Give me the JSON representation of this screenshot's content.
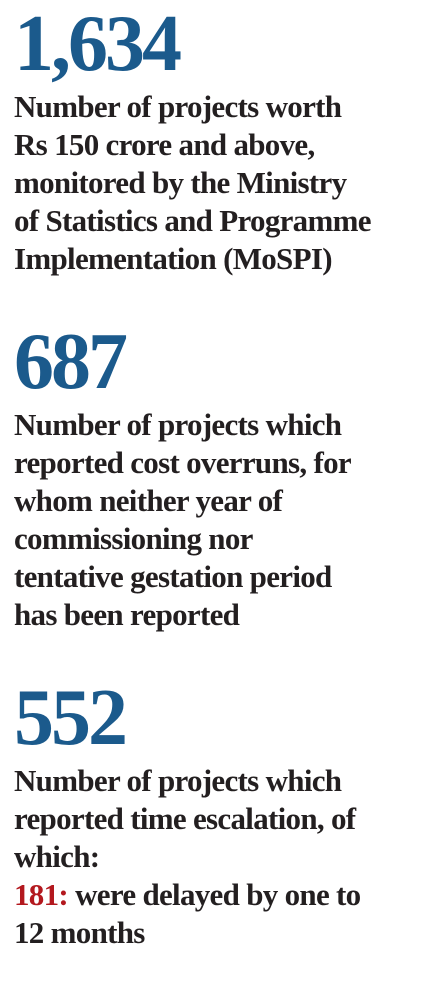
{
  "stats": [
    {
      "number": "1,634",
      "lines": [
        "Number of projects worth",
        "Rs 150 crore and above,",
        "monitored by the Ministry",
        "of Statistics and Programme",
        "Implementation (MoSPI)"
      ]
    },
    {
      "number": "687",
      "lines": [
        "Number of projects which",
        "reported cost overruns, for",
        "whom neither year of",
        "commissioning nor",
        "tentative gestation period",
        "has been reported"
      ]
    },
    {
      "number": "552",
      "lines": [
        "Number of projects which",
        "reported time escalation, of",
        "which:"
      ],
      "highlight": {
        "number": "181:",
        "lines": [
          "were delayed by one to",
          "12 months"
        ]
      }
    }
  ]
}
